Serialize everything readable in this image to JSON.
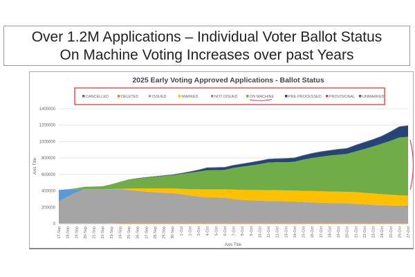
{
  "slide": {
    "title_line1": "Over 1.2M Applications – Individual Voter Ballot Status",
    "title_line2": "On Machine Voting Increases over past Years"
  },
  "chart_data": {
    "type": "area",
    "stacked": true,
    "title": "2025 Early Voting Approved Applications - Ballot Status",
    "xlabel": "Axis Title",
    "ylabel": "Axis Title",
    "ylim": [
      0,
      1400000
    ],
    "yticks": [
      0,
      200000,
      400000,
      600000,
      800000,
      1000000,
      1200000,
      1400000
    ],
    "grid": true,
    "legend_position": "top",
    "legend_highlight": "ON MACHINE",
    "categories": [
      "17-Sep",
      "18-Sep",
      "19-Sep",
      "20-Sep",
      "21-Sep",
      "22-Sep",
      "23-Sep",
      "24-Sep",
      "25-Sep",
      "26-Sep",
      "27-Sep",
      "28-Sep",
      "29-Sep",
      "30-Sep",
      "1-Oct",
      "2-Oct",
      "3-Oct",
      "4-Oct",
      "5-Oct",
      "6-Oct",
      "7-Oct",
      "8-Oct",
      "9-Oct",
      "10-Oct",
      "11-Oct",
      "12-Oct",
      "13-Oct",
      "14-Oct",
      "15-Oct",
      "16-Oct",
      "17-Oct",
      "18-Oct",
      "19-Oct",
      "20-Oct",
      "21-Oct",
      "22-Oct",
      "23-Oct",
      "24-Oct",
      "25-Oct",
      "26-Oct",
      "27-Oct"
    ],
    "legend_order": [
      "CANCELLED",
      "DELETED",
      "ISSUED",
      "MARKED",
      "NOT ISSUED",
      "ON MACHINE",
      "PRE-PROCESSED",
      "PROVISIONAL",
      "UNMARKED"
    ],
    "series": [
      {
        "name": "DELETED",
        "color": "#ed7d31",
        "values": [
          5000,
          5000,
          5000,
          5000,
          5000,
          5000,
          5000,
          8000,
          10000,
          10000,
          10000,
          10000,
          10000,
          10000,
          10000,
          10000,
          10000,
          10000,
          10000,
          10000,
          10000,
          10000,
          10000,
          10000,
          10000,
          10000,
          10000,
          10000,
          10000,
          10000,
          10000,
          10000,
          10000,
          10000,
          10000,
          12000,
          12000,
          12000,
          12000,
          12000,
          12000
        ]
      },
      {
        "name": "ISSUED",
        "color": "#a5a5a5",
        "values": [
          265000,
          325000,
          375000,
          415000,
          415000,
          415000,
          415000,
          412000,
          400000,
          390000,
          380000,
          375000,
          365000,
          362000,
          350000,
          335000,
          320000,
          312000,
          310000,
          305000,
          290000,
          280000,
          275000,
          270000,
          265000,
          265000,
          262000,
          260000,
          255000,
          248000,
          245000,
          242000,
          240000,
          238000,
          230000,
          223000,
          216000,
          213000,
          210000,
          208000,
          208000
        ]
      },
      {
        "name": "MARKED",
        "color": "#ffc000",
        "values": [
          0,
          0,
          0,
          0,
          0,
          0,
          2000,
          5000,
          18000,
          30000,
          40000,
          45000,
          55000,
          58000,
          65000,
          75000,
          88000,
          96000,
          98000,
          103000,
          115000,
          122000,
          125000,
          130000,
          133000,
          133000,
          134000,
          135000,
          135000,
          140000,
          140000,
          140000,
          140000,
          140000,
          145000,
          140000,
          140000,
          135000,
          130000,
          125000,
          122000
        ]
      },
      {
        "name": "NOT ISSUED",
        "color": "#5b9bd5",
        "values": [
          140000,
          90000,
          40000,
          0,
          0,
          0,
          0,
          0,
          0,
          0,
          0,
          0,
          0,
          0,
          0,
          0,
          0,
          0,
          0,
          0,
          0,
          0,
          0,
          0,
          0,
          0,
          0,
          0,
          0,
          0,
          0,
          0,
          0,
          0,
          0,
          0,
          0,
          0,
          0,
          0,
          0
        ]
      },
      {
        "name": "ON MACHINE",
        "color": "#70ad47",
        "values": [
          0,
          0,
          12000,
          30000,
          32000,
          35000,
          58000,
          85000,
          107000,
          120000,
          130000,
          140000,
          150000,
          160000,
          180000,
          200000,
          217000,
          232000,
          234000,
          237000,
          265000,
          283000,
          300000,
          315000,
          337000,
          340000,
          342000,
          350000,
          380000,
          402000,
          420000,
          438000,
          450000,
          462000,
          495000,
          535000,
          572000,
          615000,
          658000,
          705000,
          716000
        ]
      },
      {
        "name": "PRE-PROCESSED",
        "color": "#264478",
        "values": [
          0,
          0,
          0,
          0,
          0,
          0,
          0,
          0,
          2000,
          3000,
          4000,
          5000,
          5000,
          6000,
          8000,
          12000,
          18000,
          30000,
          30000,
          30000,
          30000,
          32000,
          35000,
          38000,
          40000,
          42000,
          45000,
          45000,
          50000,
          55000,
          60000,
          60000,
          65000,
          65000,
          75000,
          80000,
          85000,
          90000,
          110000,
          130000,
          135000
        ]
      },
      {
        "name": "UNMARKED",
        "color": "#636363",
        "values": [
          0,
          0,
          0,
          0,
          0,
          0,
          0,
          0,
          2000,
          2000,
          3000,
          3000,
          3000,
          3000,
          4000,
          4000,
          5000,
          5000,
          5000,
          5000,
          5000,
          5000,
          5000,
          5000,
          5000,
          5000,
          5000,
          5000,
          5000,
          5000,
          5000,
          5000,
          5000,
          5000,
          5000,
          5000,
          5000,
          5000,
          5000,
          5000,
          5000
        ]
      },
      {
        "name": "PROVISIONAL",
        "color": "#e04a3c",
        "values": [
          0,
          0,
          0,
          0,
          0,
          0,
          0,
          0,
          0,
          0,
          0,
          0,
          0,
          0,
          0,
          0,
          0,
          0,
          0,
          0,
          0,
          0,
          0,
          0,
          0,
          0,
          0,
          0,
          0,
          0,
          0,
          0,
          0,
          0,
          0,
          0,
          0,
          0,
          0,
          0,
          0
        ]
      },
      {
        "name": "CANCELLED",
        "color": "#4472c4",
        "values": [
          0,
          0,
          0,
          0,
          0,
          0,
          0,
          0,
          0,
          0,
          0,
          0,
          0,
          0,
          0,
          0,
          0,
          0,
          0,
          0,
          0,
          0,
          0,
          0,
          0,
          0,
          0,
          0,
          0,
          0,
          0,
          0,
          0,
          0,
          0,
          0,
          0,
          0,
          0,
          0,
          0
        ]
      }
    ],
    "legend_colors": {
      "CANCELLED": "#4472c4",
      "DELETED": "#ed7d31",
      "ISSUED": "#a5a5a5",
      "MARKED": "#ffc000",
      "NOT ISSUED": "#5b9bd5",
      "ON MACHINE": "#70ad47",
      "PRE-PROCESSED": "#264478",
      "PROVISIONAL": "#e04a3c",
      "UNMARKED": "#636363"
    },
    "annotation_color": "#e8337a"
  }
}
